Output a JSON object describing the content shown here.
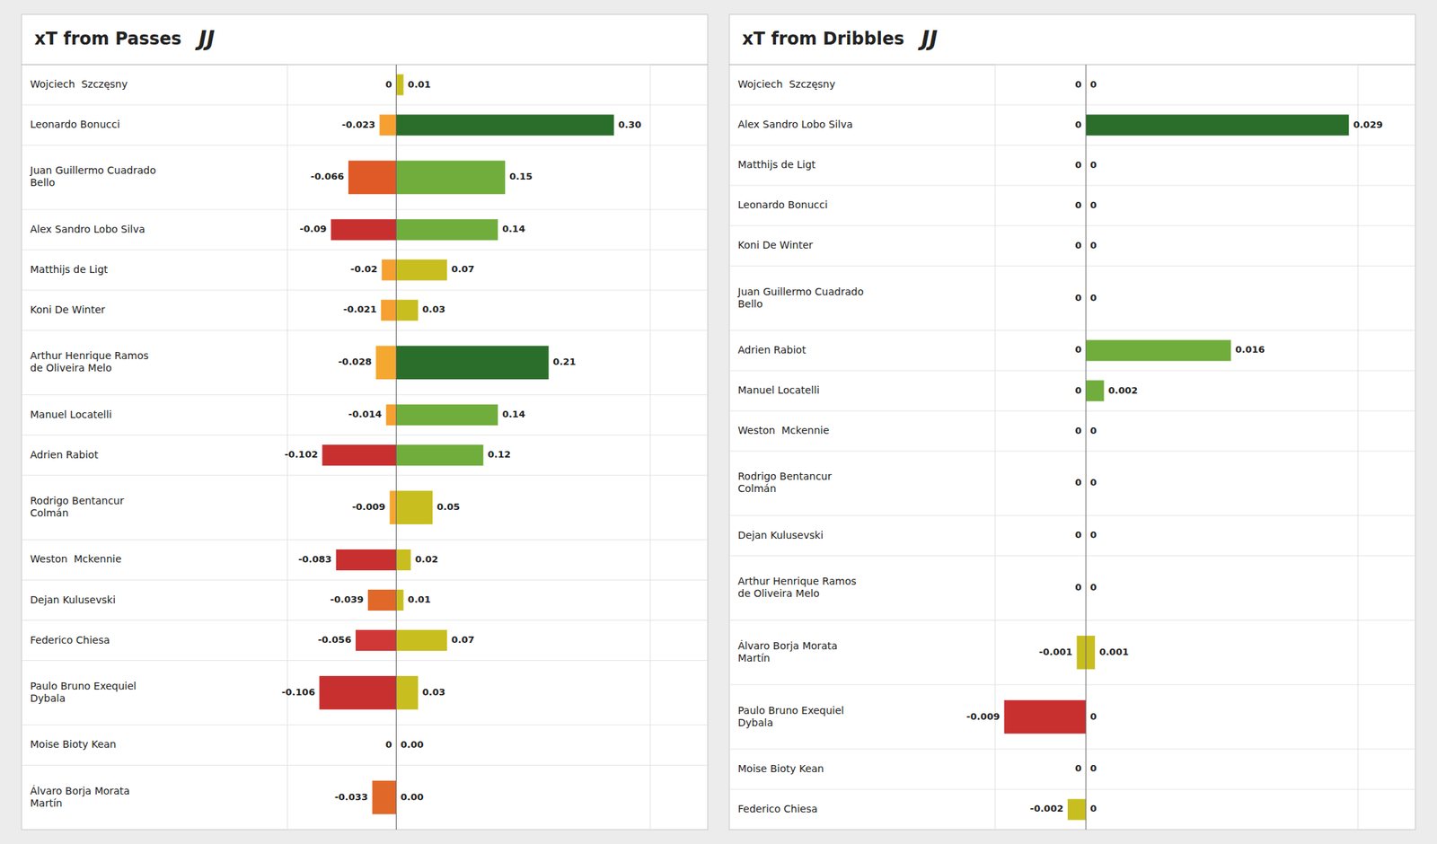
{
  "chart_data": [
    {
      "type": "bar",
      "orientation": "horizontal",
      "title": "xT from Passes",
      "annotations": [
        "JJ"
      ],
      "categories": [
        "Wojciech  Szczęsny",
        "Leonardo Bonucci",
        "Juan Guillermo Cuadrado\nBello",
        "Alex Sandro Lobo Silva",
        "Matthijs de Ligt",
        "Koni De Winter",
        "Arthur Henrique Ramos\nde Oliveira Melo",
        "Manuel Locatelli",
        "Adrien Rabiot",
        "Rodrigo Bentancur\nColmán",
        "Weston  Mckennie",
        "Dejan Kulusevski",
        "Federico Chiesa",
        "Paulo Bruno Exequiel\nDybala",
        "Moise Bioty Kean",
        "Álvaro Borja Morata\nMartín"
      ],
      "series": [
        {
          "values": [
            0,
            -0.023,
            -0.066,
            -0.09,
            -0.02,
            -0.021,
            -0.028,
            -0.014,
            -0.102,
            -0.009,
            -0.083,
            -0.039,
            -0.056,
            -0.106,
            0,
            -0.033
          ],
          "value_labels": [
            "0",
            "-0.023",
            "-0.066",
            "-0.09",
            "-0.02",
            "-0.021",
            "-0.028",
            "-0.014",
            "-0.102",
            "-0.009",
            "-0.083",
            "-0.039",
            "-0.056",
            "-0.106",
            "0",
            "-0.033"
          ],
          "colors": [
            "#ffffff",
            "#F5A030",
            "#E05A28",
            "#C83030",
            "#F5A030",
            "#F5A030",
            "#F5A830",
            "#F5A030",
            "#C83030",
            "#F5A830",
            "#C83030",
            "#E06828",
            "#D03838",
            "#C83030",
            "#ffffff",
            "#E06828"
          ]
        },
        {
          "values": [
            0.01,
            0.3,
            0.15,
            0.14,
            0.07,
            0.03,
            0.21,
            0.14,
            0.12,
            0.05,
            0.02,
            0.01,
            0.07,
            0.03,
            0.0,
            0.0
          ],
          "value_labels": [
            "0.01",
            "0.30",
            "0.15",
            "0.14",
            "0.07",
            "0.03",
            "0.21",
            "0.14",
            "0.12",
            "0.05",
            "0.02",
            "0.01",
            "0.07",
            "0.03",
            "0.00",
            "0.00"
          ],
          "colors": [
            "#C8BE20",
            "#2B6E2B",
            "#70AD3C",
            "#70AD3C",
            "#C8BE20",
            "#C8BE20",
            "#2B6E2B",
            "#70AD3C",
            "#70AD3C",
            "#C8BE20",
            "#C8BE20",
            "#C8BE20",
            "#C8BE20",
            "#C8BE20",
            "#ffffff",
            "#ffffff"
          ]
        }
      ],
      "xlim": [
        -0.15,
        0.35
      ],
      "data_labels": true,
      "tick_labels": false,
      "grid": false
    },
    {
      "type": "bar",
      "orientation": "horizontal",
      "title": "xT from Dribbles",
      "annotations": [
        "JJ"
      ],
      "categories": [
        "Wojciech  Szczęsny",
        "Alex Sandro Lobo Silva",
        "Matthijs de Ligt",
        "Leonardo Bonucci",
        "Koni De Winter",
        "Juan Guillermo Cuadrado\nBello",
        "Adrien Rabiot",
        "Manuel Locatelli",
        "Weston  Mckennie",
        "Rodrigo Bentancur\nColmán",
        "Dejan Kulusevski",
        "Arthur Henrique Ramos\nde Oliveira Melo",
        "Álvaro Borja Morata\nMartín",
        "Paulo Bruno Exequiel\nDybala",
        "Moise Bioty Kean",
        "Federico Chiesa"
      ],
      "series": [
        {
          "values": [
            0,
            0,
            0,
            0,
            0,
            0,
            0,
            0,
            0,
            0,
            0,
            0,
            -0.001,
            -0.009,
            0,
            -0.002
          ],
          "value_labels": [
            "0",
            "0",
            "0",
            "0",
            "0",
            "0",
            "0",
            "0",
            "0",
            "0",
            "0",
            "0",
            "-0.001",
            "-0.009",
            "0",
            "-0.002"
          ],
          "colors": [
            "#ffffff",
            "#ffffff",
            "#ffffff",
            "#ffffff",
            "#ffffff",
            "#ffffff",
            "#ffffff",
            "#ffffff",
            "#ffffff",
            "#ffffff",
            "#ffffff",
            "#ffffff",
            "#C8BE20",
            "#C83030",
            "#ffffff",
            "#C8BE20"
          ]
        },
        {
          "values": [
            0,
            0.029,
            0,
            0,
            0,
            0,
            0.016,
            0.002,
            0,
            0,
            0,
            0,
            0.001,
            0,
            0,
            0
          ],
          "value_labels": [
            "0",
            "0.029",
            "0",
            "0",
            "0",
            "0",
            "0.016",
            "0.002",
            "0",
            "0",
            "0",
            "0",
            "0.001",
            "0",
            "0",
            "0"
          ],
          "colors": [
            "#ffffff",
            "#2B6E2B",
            "#ffffff",
            "#ffffff",
            "#ffffff",
            "#ffffff",
            "#70AD3C",
            "#70AD3C",
            "#ffffff",
            "#ffffff",
            "#ffffff",
            "#ffffff",
            "#C8BE20",
            "#ffffff",
            "#ffffff",
            "#ffffff"
          ]
        }
      ],
      "xlim": [
        -0.01,
        0.03
      ],
      "data_labels": true,
      "tick_labels": false,
      "grid": false
    }
  ]
}
